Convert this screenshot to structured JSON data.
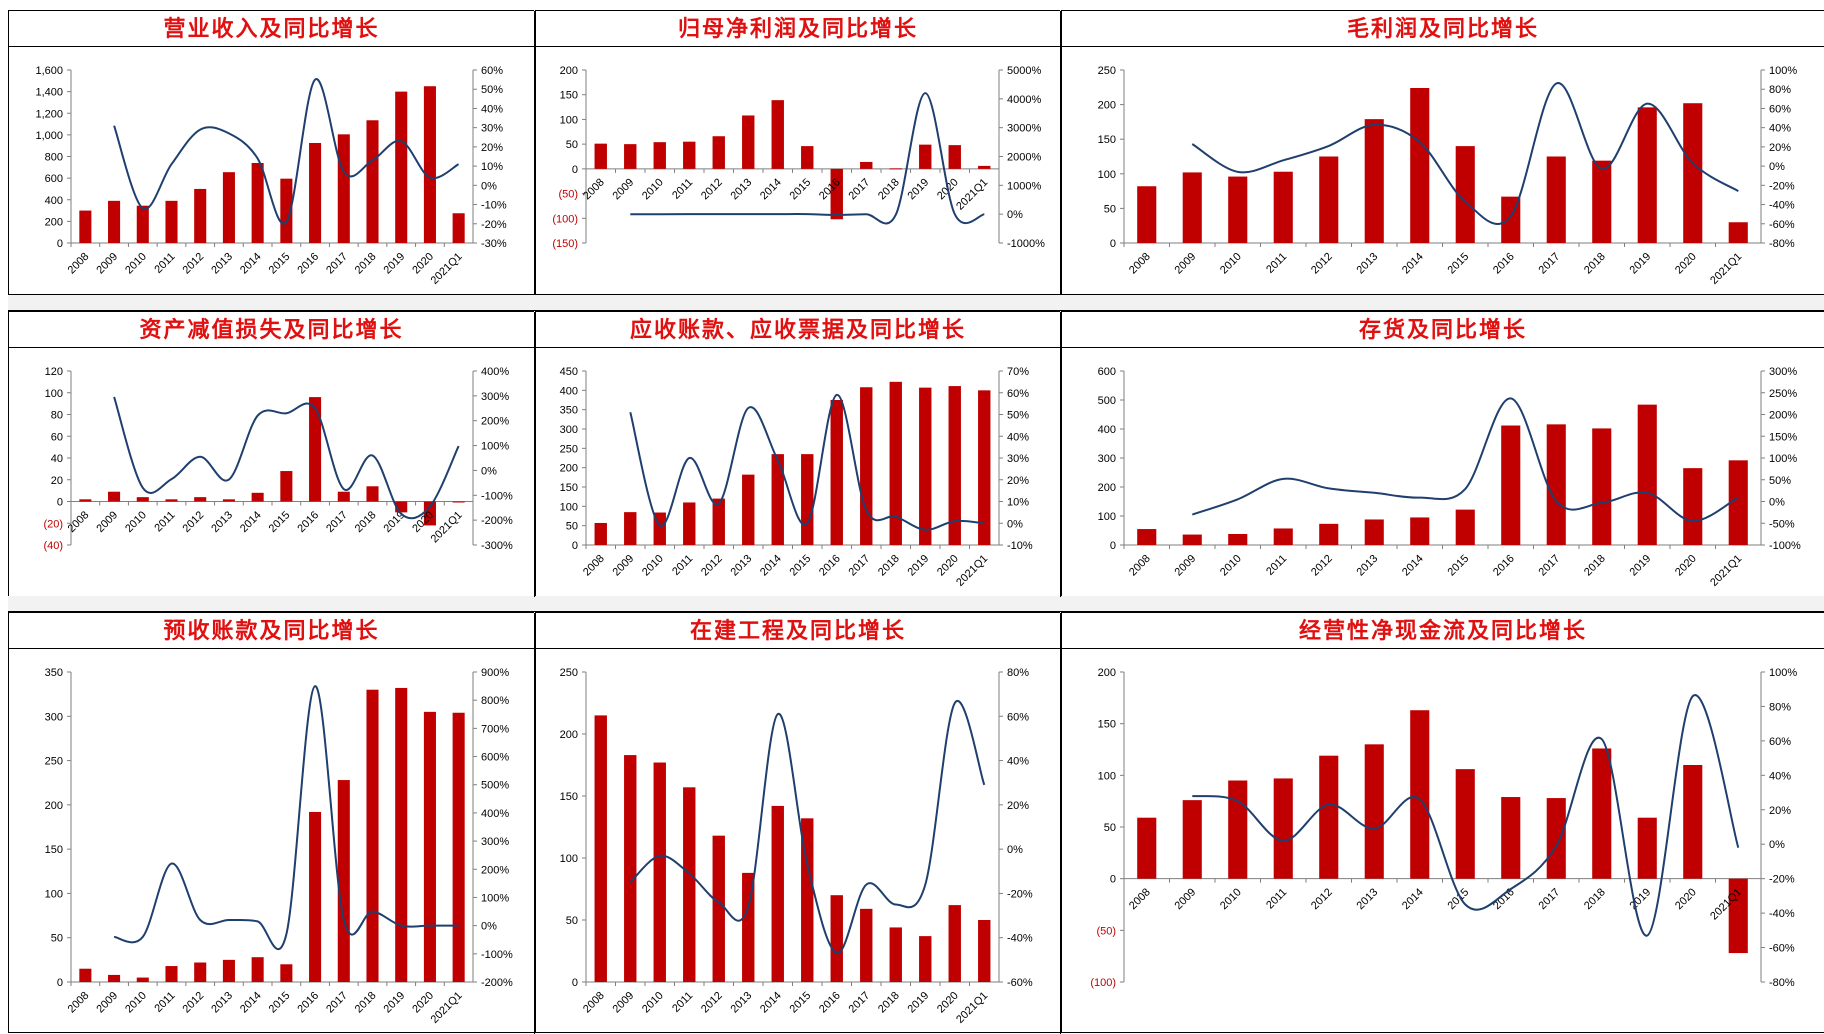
{
  "chart_data": [
    {
      "type": "bar",
      "title": "营业收入及同比增长",
      "categories": [
        "2008",
        "2009",
        "2010",
        "2011",
        "2012",
        "2013",
        "2014",
        "2015",
        "2016",
        "2017",
        "2018",
        "2019",
        "2020",
        "2021Q1"
      ],
      "bars": [
        300,
        390,
        345,
        390,
        500,
        655,
        740,
        595,
        925,
        1005,
        1135,
        1400,
        1450,
        275
      ],
      "line": [
        null,
        0.31,
        -0.12,
        0.11,
        0.29,
        0.27,
        0.14,
        -0.19,
        0.55,
        0.07,
        0.13,
        0.23,
        0.04,
        0.11
      ],
      "ylim": [
        0,
        1600
      ],
      "yticks": [
        0,
        200,
        400,
        600,
        800,
        1000,
        1200,
        1400,
        1600
      ],
      "y2lim": [
        -0.3,
        0.6
      ],
      "y2ticks": [
        -0.3,
        -0.2,
        -0.1,
        0,
        0.1,
        0.2,
        0.3,
        0.4,
        0.5,
        0.6
      ],
      "ytick_labels": [
        "0",
        "200",
        "400",
        "600",
        "800",
        "1,000",
        "1,200",
        "1,400",
        "1,600"
      ],
      "y2tick_labels": [
        "-30%",
        "-20%",
        "-10%",
        "0%",
        "10%",
        "20%",
        "30%",
        "40%",
        "50%",
        "60%"
      ]
    },
    {
      "type": "bar",
      "title": "归母净利润及同比增长",
      "categories": [
        "2008",
        "2009",
        "2010",
        "2011",
        "2012",
        "2013",
        "2014",
        "2015",
        "2016",
        "2017",
        "2018",
        "2019",
        "2020",
        "2021Q1"
      ],
      "bars": [
        51,
        50,
        54,
        55,
        66,
        108,
        139,
        46,
        -102,
        14,
        1,
        49,
        48,
        6
      ],
      "line": [
        null,
        0.0,
        0.0,
        0.01,
        0.01,
        0.02,
        0.03,
        0.01,
        -0.3,
        0.0,
        -0.2,
        42.0,
        0.0,
        0.0
      ],
      "ylim": [
        -150,
        200
      ],
      "yticks": [
        -150,
        -100,
        -50,
        0,
        50,
        100,
        150,
        200
      ],
      "y2lim": [
        -10,
        50
      ],
      "y2ticks": [
        -10,
        0,
        10,
        20,
        30,
        40,
        50
      ],
      "ytick_labels": [
        "(150)",
        "(100)",
        "(50)",
        "0",
        "50",
        "100",
        "150",
        "200"
      ],
      "y2tick_labels": [
        "-1000%",
        "0%",
        "1000%",
        "2000%",
        "3000%",
        "4000%",
        "5000%"
      ]
    },
    {
      "type": "bar",
      "title": "毛利润及同比增长",
      "categories": [
        "2008",
        "2009",
        "2010",
        "2011",
        "2012",
        "2013",
        "2014",
        "2015",
        "2016",
        "2017",
        "2018",
        "2019",
        "2020",
        "2021Q1"
      ],
      "bars": [
        82,
        102,
        96,
        103,
        125,
        179,
        224,
        140,
        67,
        125,
        119,
        196,
        202,
        30
      ],
      "line": [
        null,
        0.23,
        -0.06,
        0.06,
        0.21,
        0.43,
        0.25,
        -0.37,
        -0.52,
        0.86,
        -0.03,
        0.65,
        0.03,
        -0.26
      ],
      "ylim": [
        0,
        250
      ],
      "yticks": [
        0,
        50,
        100,
        150,
        200,
        250
      ],
      "y2lim": [
        -0.8,
        1.0
      ],
      "y2ticks": [
        -0.8,
        -0.6,
        -0.4,
        -0.2,
        0,
        0.2,
        0.4,
        0.6,
        0.8,
        1.0
      ],
      "ytick_labels": [
        "0",
        "50",
        "100",
        "150",
        "200",
        "250"
      ],
      "y2tick_labels": [
        "-80%",
        "-60%",
        "-40%",
        "-20%",
        "0%",
        "20%",
        "40%",
        "60%",
        "80%",
        "100%"
      ]
    },
    {
      "type": "bar",
      "title": "资产减值损失及同比增长",
      "categories": [
        "2008",
        "2009",
        "2010",
        "2011",
        "2012",
        "2013",
        "2014",
        "2015",
        "2016",
        "2017",
        "2018",
        "2019",
        "2020",
        "2021Q1"
      ],
      "bars": [
        2,
        9,
        4,
        2,
        4,
        2,
        8,
        28,
        96,
        9,
        14,
        -10,
        -22,
        0
      ],
      "line": [
        null,
        2.96,
        -0.7,
        -0.35,
        0.55,
        -0.37,
        2.2,
        2.3,
        2.5,
        -0.75,
        0.6,
        -1.75,
        -1.45,
        0.98
      ],
      "ylim": [
        -40,
        120
      ],
      "yticks": [
        -40,
        -20,
        0,
        20,
        40,
        60,
        80,
        100,
        120
      ],
      "y2lim": [
        -3,
        4
      ],
      "y2ticks": [
        -3,
        -2,
        -1,
        0,
        1,
        2,
        3,
        4
      ],
      "ytick_labels": [
        "(40)",
        "(20)",
        "0",
        "20",
        "40",
        "60",
        "80",
        "100",
        "120"
      ],
      "y2tick_labels": [
        "-300%",
        "-200%",
        "-100%",
        "0%",
        "100%",
        "200%",
        "300%",
        "400%"
      ]
    },
    {
      "type": "bar",
      "title": "应收账款、应收票据及同比增长",
      "categories": [
        "2008",
        "2009",
        "2010",
        "2011",
        "2012",
        "2013",
        "2014",
        "2015",
        "2016",
        "2017",
        "2018",
        "2019",
        "2020",
        "2021Q1"
      ],
      "bars": [
        57,
        85,
        84,
        110,
        120,
        182,
        235,
        235,
        375,
        408,
        422,
        407,
        411,
        400
      ],
      "line": [
        null,
        0.51,
        -0.01,
        0.3,
        0.09,
        0.53,
        0.29,
        0.0,
        0.59,
        0.06,
        0.03,
        -0.03,
        0.01,
        0.0
      ],
      "ylim": [
        0,
        450
      ],
      "yticks": [
        0,
        50,
        100,
        150,
        200,
        250,
        300,
        350,
        400,
        450
      ],
      "y2lim": [
        -0.1,
        0.7
      ],
      "y2ticks": [
        -0.1,
        0,
        0.1,
        0.2,
        0.3,
        0.4,
        0.5,
        0.6,
        0.7
      ],
      "ytick_labels": [
        "0",
        "50",
        "100",
        "150",
        "200",
        "250",
        "300",
        "350",
        "400",
        "450"
      ],
      "y2tick_labels": [
        "-10%",
        "0%",
        "10%",
        "20%",
        "30%",
        "40%",
        "50%",
        "60%",
        "70%"
      ]
    },
    {
      "type": "bar",
      "title": "存货及同比增长",
      "categories": [
        "2008",
        "2009",
        "2010",
        "2011",
        "2012",
        "2013",
        "2014",
        "2015",
        "2016",
        "2017",
        "2018",
        "2019",
        "2020",
        "2021Q1"
      ],
      "bars": [
        55,
        36,
        38,
        57,
        73,
        88,
        95,
        122,
        412,
        416,
        402,
        484,
        265,
        292
      ],
      "line": [
        null,
        -0.3,
        0.05,
        0.52,
        0.3,
        0.2,
        0.09,
        0.29,
        2.37,
        0.01,
        -0.03,
        0.2,
        -0.45,
        0.1
      ],
      "ylim": [
        0,
        600
      ],
      "yticks": [
        0,
        100,
        200,
        300,
        400,
        500,
        600
      ],
      "y2lim": [
        -1.0,
        3.0
      ],
      "y2ticks": [
        -1.0,
        -0.5,
        0,
        0.5,
        1.0,
        1.5,
        2.0,
        2.5,
        3.0
      ],
      "ytick_labels": [
        "0",
        "100",
        "200",
        "300",
        "400",
        "500",
        "600"
      ],
      "y2tick_labels": [
        "-100%",
        "-50%",
        "0%",
        "50%",
        "100%",
        "150%",
        "200%",
        "250%",
        "300%"
      ]
    },
    {
      "type": "bar",
      "title": "预收账款及同比增长",
      "categories": [
        "2008",
        "2009",
        "2010",
        "2011",
        "2012",
        "2013",
        "2014",
        "2015",
        "2016",
        "2017",
        "2018",
        "2019",
        "2020",
        "2021Q1"
      ],
      "bars": [
        15,
        8,
        5,
        18,
        22,
        25,
        28,
        20,
        192,
        228,
        330,
        332,
        305,
        304
      ],
      "line": [
        null,
        -0.4,
        -0.4,
        2.2,
        0.2,
        0.2,
        0.15,
        -0.3,
        8.5,
        0.2,
        0.5,
        0.0,
        0.0,
        0.0
      ],
      "ylim": [
        0,
        350
      ],
      "yticks": [
        0,
        50,
        100,
        150,
        200,
        250,
        300,
        350
      ],
      "y2lim": [
        -2,
        9
      ],
      "y2ticks": [
        -2,
        -1,
        0,
        1,
        2,
        3,
        4,
        5,
        6,
        7,
        8,
        9
      ],
      "ytick_labels": [
        "0",
        "50",
        "100",
        "150",
        "200",
        "250",
        "300",
        "350"
      ],
      "y2tick_labels": [
        "-200%",
        "-100%",
        "0%",
        "100%",
        "200%",
        "300%",
        "400%",
        "500%",
        "600%",
        "700%",
        "800%",
        "900%"
      ]
    },
    {
      "type": "bar",
      "title": "在建工程及同比增长",
      "categories": [
        "2008",
        "2009",
        "2010",
        "2011",
        "2012",
        "2013",
        "2014",
        "2015",
        "2016",
        "2017",
        "2018",
        "2019",
        "2020",
        "2021Q1"
      ],
      "bars": [
        215,
        183,
        177,
        157,
        118,
        88,
        142,
        132,
        70,
        59,
        44,
        37,
        62,
        50
      ],
      "line": [
        null,
        -0.15,
        -0.03,
        -0.11,
        -0.24,
        -0.26,
        0.61,
        -0.07,
        -0.47,
        -0.16,
        -0.25,
        -0.16,
        0.66,
        0.29
      ],
      "ylim": [
        0,
        250
      ],
      "yticks": [
        0,
        50,
        100,
        150,
        200,
        250
      ],
      "y2lim": [
        -0.6,
        0.8
      ],
      "y2ticks": [
        -0.6,
        -0.4,
        -0.2,
        0,
        0.2,
        0.4,
        0.6,
        0.8
      ],
      "ytick_labels": [
        "0",
        "50",
        "100",
        "150",
        "200",
        "250"
      ],
      "y2tick_labels": [
        "-60%",
        "-40%",
        "-20%",
        "0%",
        "20%",
        "40%",
        "60%",
        "80%"
      ]
    },
    {
      "type": "bar",
      "title": "经营性净现金流及同比增长",
      "categories": [
        "2008",
        "2009",
        "2010",
        "2011",
        "2012",
        "2013",
        "2014",
        "2015",
        "2016",
        "2017",
        "2018",
        "2019",
        "2020",
        "2021Q1"
      ],
      "bars": [
        59,
        76,
        95,
        97,
        119,
        130,
        163,
        106,
        79,
        78,
        126,
        59,
        110,
        -72
      ],
      "line": [
        null,
        0.28,
        0.25,
        0.02,
        0.23,
        0.09,
        0.26,
        -0.35,
        -0.26,
        -0.01,
        0.61,
        -0.53,
        0.86,
        -0.02
      ],
      "ylim": [
        -100,
        200
      ],
      "yticks": [
        -100,
        -50,
        0,
        50,
        100,
        150,
        200
      ],
      "y2lim": [
        -0.8,
        1.0
      ],
      "y2ticks": [
        -0.8,
        -0.6,
        -0.4,
        -0.2,
        0,
        0.2,
        0.4,
        0.6,
        0.8,
        1.0
      ],
      "ytick_labels": [
        "(100)",
        "(50)",
        "0",
        "50",
        "100",
        "150",
        "200"
      ],
      "y2tick_labels": [
        "-80%",
        "-60%",
        "-40%",
        "-20%",
        "0%",
        "20%",
        "40%",
        "60%",
        "80%",
        "100%"
      ]
    }
  ],
  "colors": {
    "bar": "#c00000",
    "line": "#1f3f6e",
    "title": "#e01010",
    "axis": "#7f7f7f",
    "negative_tick": "#c00000"
  }
}
